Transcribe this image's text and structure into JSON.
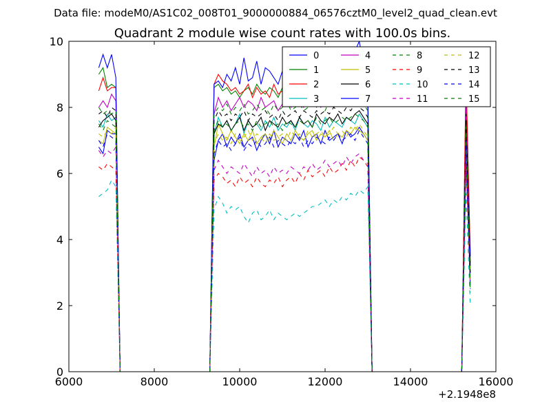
{
  "header": {
    "suptitle": "Data file: modeM0/AS1C02_008T01_9000000884_06576cztM0_level2_quad_clean.evt"
  },
  "chart_data": {
    "type": "line",
    "title": "Quadrant 2 module wise count rates with 100.0s bins.",
    "xlabel": "",
    "ylabel": "",
    "xlim": [
      6000,
      16000
    ],
    "ylim": [
      0,
      10
    ],
    "x_offset_label": "+2.1948e8",
    "x_ticks": [
      6000,
      8000,
      10000,
      12000,
      14000,
      16000
    ],
    "x_tick_labels": [
      "6000",
      "8000",
      "10000",
      "12000",
      "14000",
      "16000"
    ],
    "y_ticks": [
      0,
      2,
      4,
      6,
      8,
      10
    ],
    "y_tick_labels": [
      "0",
      "2",
      "4",
      "6",
      "8",
      "10"
    ],
    "grid": false,
    "legend_position": "top-right",
    "legend_columns": 4,
    "x": [
      6700,
      6800,
      6900,
      7000,
      7100,
      7200,
      7300,
      8000,
      8600,
      9300,
      9400,
      9500,
      9600,
      9700,
      9800,
      9900,
      10000,
      10100,
      10200,
      10300,
      10400,
      10500,
      10600,
      10700,
      10800,
      10900,
      11000,
      11100,
      11200,
      11300,
      11400,
      11500,
      11600,
      11700,
      11800,
      11900,
      12000,
      12100,
      12200,
      12300,
      12400,
      12500,
      12600,
      12700,
      12800,
      12900,
      13000,
      13100,
      13200,
      14000,
      14600,
      15200,
      15300,
      15400
    ],
    "series": [
      {
        "name": "0",
        "color": "#0000ff",
        "dashed": false,
        "values": [
          6.8,
          6.6,
          7.3,
          7.2,
          7.2,
          0,
          0,
          0,
          0,
          0,
          6.4,
          7.0,
          7.2,
          6.8,
          7.1,
          6.9,
          7.2,
          6.8,
          7.0,
          7.1,
          6.7,
          7.0,
          7.2,
          6.9,
          7.3,
          6.8,
          7.1,
          7.0,
          6.9,
          7.2,
          7.0,
          7.3,
          6.8,
          7.1,
          7.2,
          6.9,
          7.3,
          7.0,
          7.1,
          7.2,
          6.9,
          7.3,
          7.1,
          7.2,
          7.4,
          7.2,
          7.0,
          0,
          0,
          0,
          0,
          0,
          6.4,
          3.0
        ]
      },
      {
        "name": "1",
        "color": "#008000",
        "dashed": false,
        "values": [
          9.0,
          9.2,
          8.6,
          8.7,
          8.6,
          0,
          0,
          0,
          0,
          0,
          8.6,
          8.7,
          8.5,
          8.6,
          8.4,
          8.5,
          8.3,
          8.5,
          8.6,
          8.4,
          8.7,
          8.5,
          8.4,
          8.6,
          8.5,
          8.3,
          8.6,
          8.4,
          8.5,
          8.7,
          8.4,
          8.6,
          8.5,
          8.3,
          8.6,
          8.5,
          8.4,
          8.6,
          8.7,
          8.5,
          8.6,
          8.4,
          8.5,
          8.7,
          8.6,
          8.5,
          8.0,
          0,
          0,
          0,
          0,
          0,
          8.8,
          3.6
        ]
      },
      {
        "name": "2",
        "color": "#ff0000",
        "dashed": false,
        "values": [
          8.5,
          8.9,
          8.5,
          8.6,
          8.6,
          0,
          0,
          0,
          0,
          0,
          8.7,
          9.0,
          8.8,
          8.7,
          8.5,
          8.6,
          8.4,
          8.5,
          8.7,
          8.3,
          8.6,
          8.4,
          8.5,
          8.3,
          8.7,
          8.4,
          8.5,
          8.6,
          8.3,
          8.5,
          8.4,
          8.7,
          8.5,
          8.4,
          8.6,
          8.5,
          8.3,
          8.7,
          8.5,
          8.6,
          8.4,
          8.6,
          8.5,
          8.7,
          8.8,
          8.6,
          8.3,
          0,
          0,
          0,
          0,
          0,
          9.1,
          3.5
        ]
      },
      {
        "name": "3",
        "color": "#00bfbf",
        "dashed": false,
        "values": [
          7.6,
          7.4,
          7.8,
          7.6,
          7.7,
          0,
          0,
          0,
          0,
          0,
          7.2,
          7.7,
          7.4,
          7.6,
          7.3,
          7.5,
          7.8,
          7.2,
          7.6,
          7.4,
          7.5,
          7.3,
          7.6,
          7.4,
          7.7,
          7.3,
          7.5,
          7.4,
          7.6,
          7.3,
          7.7,
          7.5,
          7.4,
          7.6,
          7.5,
          7.3,
          7.7,
          7.4,
          7.6,
          7.5,
          7.4,
          7.7,
          7.6,
          7.5,
          7.8,
          7.6,
          7.4,
          0,
          0,
          0,
          0,
          0,
          7.2,
          3.3
        ]
      },
      {
        "name": "4",
        "color": "#bf00bf",
        "dashed": false,
        "values": [
          8.0,
          8.2,
          8.0,
          8.4,
          8.2,
          0,
          0,
          0,
          0,
          0,
          7.8,
          8.3,
          8.0,
          8.2,
          7.9,
          8.1,
          8.3,
          8.0,
          8.2,
          8.1,
          7.9,
          8.3,
          8.0,
          8.1,
          8.2,
          7.9,
          8.1,
          8.3,
          8.0,
          8.2,
          8.1,
          8.0,
          8.3,
          8.1,
          8.2,
          8.0,
          8.3,
          8.1,
          8.2,
          8.4,
          8.1,
          8.3,
          8.2,
          8.5,
          8.3,
          8.2,
          8.0,
          0,
          0,
          0,
          0,
          0,
          8.0,
          3.3
        ]
      },
      {
        "name": "5",
        "color": "#bfbf00",
        "dashed": false,
        "values": [
          7.0,
          6.9,
          7.4,
          7.3,
          7.2,
          0,
          0,
          0,
          0,
          0,
          6.8,
          7.5,
          7.2,
          7.0,
          7.3,
          7.1,
          6.9,
          7.2,
          7.0,
          7.3,
          6.9,
          7.1,
          7.2,
          7.0,
          7.3,
          7.1,
          6.9,
          7.2,
          7.0,
          7.3,
          7.1,
          7.0,
          7.2,
          7.3,
          7.0,
          7.2,
          7.1,
          7.3,
          7.0,
          7.2,
          7.1,
          7.3,
          7.2,
          7.4,
          7.3,
          7.2,
          7.0,
          0,
          0,
          0,
          0,
          0,
          7.0,
          3.1
        ]
      },
      {
        "name": "6",
        "color": "#000000",
        "dashed": false,
        "values": [
          7.4,
          7.6,
          7.7,
          7.8,
          7.6,
          0,
          0,
          0,
          0,
          0,
          7.2,
          7.5,
          7.4,
          7.6,
          7.3,
          7.5,
          7.7,
          7.3,
          7.6,
          7.4,
          7.5,
          7.7,
          7.3,
          7.6,
          7.5,
          7.4,
          7.7,
          7.5,
          7.6,
          7.4,
          7.7,
          7.5,
          7.6,
          7.4,
          7.8,
          7.6,
          7.5,
          7.7,
          7.6,
          7.8,
          7.5,
          7.7,
          7.6,
          7.8,
          7.9,
          7.7,
          7.5,
          0,
          0,
          0,
          0,
          0,
          7.5,
          3.2
        ]
      },
      {
        "name": "7",
        "color": "#0000ff",
        "dashed": false,
        "values": [
          9.2,
          9.6,
          9.2,
          9.6,
          8.9,
          0,
          0,
          0,
          0,
          0,
          8.7,
          8.8,
          8.6,
          9.0,
          8.8,
          9.2,
          8.7,
          9.5,
          8.8,
          8.9,
          9.4,
          8.7,
          9.2,
          9.1,
          8.9,
          8.7,
          9.1,
          9.3,
          8.8,
          9.0,
          8.9,
          9.2,
          9.0,
          8.8,
          9.4,
          9.1,
          9.3,
          9.2,
          9.4,
          9.3,
          9.4,
          9.6,
          9.5,
          9.7,
          10.0,
          9.3,
          8.5,
          0,
          0,
          0,
          0,
          0,
          7.0,
          3.5
        ]
      },
      {
        "name": "8",
        "color": "#008000",
        "dashed": true,
        "values": [
          8.0,
          7.8,
          7.9,
          7.8,
          7.9,
          0,
          0,
          0,
          0,
          0,
          7.8,
          8.0,
          7.9,
          8.1,
          7.8,
          8.0,
          7.9,
          8.1,
          7.8,
          7.9,
          8.1,
          7.9,
          8.0,
          7.8,
          8.1,
          7.9,
          8.0,
          8.2,
          7.9,
          8.0,
          8.1,
          7.9,
          8.0,
          8.2,
          8.0,
          8.1,
          7.9,
          8.2,
          8.0,
          8.1,
          8.2,
          8.0,
          8.1,
          8.3,
          8.2,
          8.1,
          7.9,
          0,
          0,
          0,
          0,
          0,
          7.6,
          2.4
        ]
      },
      {
        "name": "9",
        "color": "#ff0000",
        "dashed": true,
        "values": [
          6.2,
          6.1,
          6.3,
          6.2,
          6.1,
          0,
          0,
          0,
          0,
          0,
          5.8,
          6.0,
          5.9,
          5.7,
          5.8,
          5.6,
          5.9,
          5.7,
          5.8,
          5.6,
          5.9,
          5.7,
          5.6,
          5.8,
          5.7,
          5.9,
          5.6,
          5.8,
          5.9,
          5.7,
          6.0,
          5.8,
          6.1,
          5.9,
          6.0,
          6.1,
          5.9,
          6.2,
          6.0,
          6.1,
          6.3,
          6.1,
          6.4,
          6.2,
          6.5,
          6.4,
          6.2,
          0,
          0,
          0,
          0,
          0,
          6.2,
          2.7
        ]
      },
      {
        "name": "10",
        "color": "#00bfbf",
        "dashed": true,
        "values": [
          5.3,
          5.4,
          5.5,
          5.8,
          5.6,
          0,
          0,
          0,
          0,
          0,
          4.9,
          5.3,
          5.1,
          4.8,
          5.0,
          4.9,
          5.0,
          4.7,
          4.5,
          4.8,
          4.9,
          4.6,
          4.7,
          4.9,
          4.6,
          4.8,
          4.7,
          4.6,
          4.7,
          4.8,
          4.7,
          4.8,
          4.9,
          5.0,
          5.0,
          5.1,
          5.2,
          5.0,
          5.2,
          5.1,
          5.3,
          5.2,
          5.4,
          5.3,
          5.5,
          5.4,
          5.6,
          0,
          0,
          0,
          0,
          0,
          5.4,
          2.0
        ]
      },
      {
        "name": "11",
        "color": "#bf00bf",
        "dashed": true,
        "values": [
          6.7,
          6.5,
          6.7,
          6.6,
          6.8,
          0,
          0,
          0,
          0,
          0,
          6.1,
          6.4,
          6.2,
          6.0,
          6.2,
          6.1,
          6.0,
          6.3,
          6.1,
          5.9,
          6.2,
          6.0,
          6.1,
          5.9,
          6.2,
          6.0,
          6.1,
          6.0,
          6.2,
          6.1,
          6.0,
          6.2,
          6.1,
          6.3,
          6.1,
          6.2,
          6.4,
          6.2,
          6.3,
          6.4,
          6.2,
          6.5,
          6.3,
          6.5,
          6.6,
          6.4,
          6.3,
          0,
          0,
          0,
          0,
          0,
          6.5,
          2.6
        ]
      },
      {
        "name": "12",
        "color": "#bfbf00",
        "dashed": true,
        "values": [
          7.2,
          7.1,
          7.3,
          7.2,
          7.4,
          0,
          0,
          0,
          0,
          0,
          6.9,
          7.2,
          7.0,
          7.1,
          6.9,
          7.2,
          7.0,
          7.1,
          7.3,
          7.0,
          7.2,
          7.1,
          6.9,
          7.2,
          7.0,
          7.1,
          7.2,
          7.0,
          7.3,
          7.1,
          7.2,
          7.0,
          7.3,
          7.1,
          7.2,
          7.3,
          7.1,
          7.2,
          7.4,
          7.2,
          7.3,
          7.1,
          7.4,
          7.3,
          7.5,
          7.3,
          7.1,
          0,
          0,
          0,
          0,
          0,
          7.1,
          2.8
        ]
      },
      {
        "name": "13",
        "color": "#000000",
        "dashed": true,
        "values": [
          7.8,
          7.9,
          7.7,
          8.0,
          7.9,
          0,
          0,
          0,
          0,
          0,
          7.6,
          7.9,
          7.7,
          7.8,
          7.6,
          7.8,
          7.7,
          7.9,
          7.6,
          7.8,
          7.7,
          7.8,
          7.9,
          7.7,
          7.8,
          7.6,
          7.9,
          7.7,
          7.8,
          7.9,
          7.7,
          7.9,
          7.8,
          7.7,
          7.9,
          7.8,
          7.9,
          7.8,
          8.0,
          7.9,
          7.8,
          8.0,
          7.9,
          8.1,
          8.0,
          7.9,
          7.7,
          0,
          0,
          0,
          0,
          0,
          7.8,
          2.9
        ]
      },
      {
        "name": "14",
        "color": "#0000ff",
        "dashed": true,
        "values": [
          7.0,
          6.8,
          7.2,
          7.1,
          7.0,
          0,
          0,
          0,
          0,
          0,
          6.6,
          7.0,
          6.8,
          6.9,
          6.7,
          6.9,
          7.1,
          6.7,
          6.9,
          6.8,
          7.0,
          6.8,
          6.9,
          7.1,
          6.8,
          7.0,
          6.9,
          6.8,
          7.0,
          6.9,
          7.1,
          6.8,
          7.0,
          6.9,
          7.1,
          7.0,
          6.9,
          7.1,
          7.0,
          7.2,
          7.0,
          7.1,
          7.2,
          7.0,
          7.3,
          7.1,
          6.9,
          0,
          0,
          0,
          0,
          0,
          6.9,
          2.5
        ]
      },
      {
        "name": "15",
        "color": "#008000",
        "dashed": true,
        "values": [
          7.5,
          7.3,
          7.6,
          7.5,
          7.4,
          0,
          0,
          0,
          0,
          0,
          7.3,
          7.6,
          7.4,
          7.5,
          7.3,
          7.5,
          7.6,
          7.4,
          7.5,
          7.3,
          7.6,
          7.4,
          7.5,
          7.6,
          7.4,
          7.5,
          7.3,
          7.6,
          7.5,
          7.4,
          7.6,
          7.5,
          7.6,
          7.4,
          7.7,
          7.5,
          7.6,
          7.7,
          7.5,
          7.6,
          7.7,
          7.6,
          7.7,
          7.8,
          7.7,
          7.6,
          7.4,
          0,
          0,
          0,
          0,
          0,
          7.4,
          2.6
        ]
      }
    ]
  }
}
